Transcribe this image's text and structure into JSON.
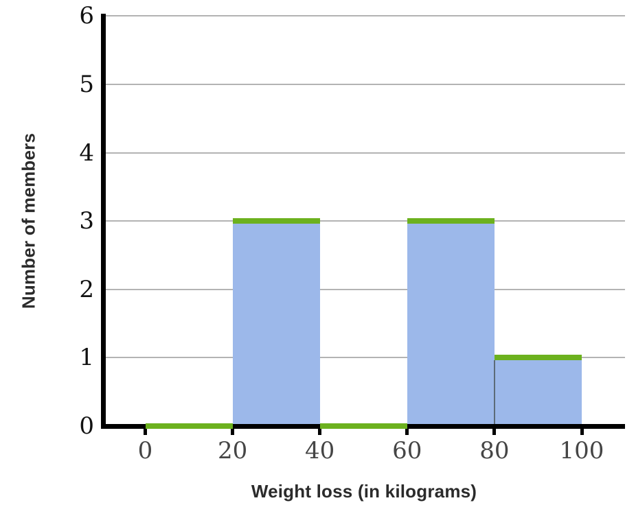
{
  "chart_data": {
    "type": "bar",
    "subtype": "histogram",
    "title": "",
    "xlabel": "Weight loss (in kilograms)",
    "ylabel": "Number of members",
    "bins": [
      {
        "start": 0,
        "end": 20,
        "count": 0
      },
      {
        "start": 20,
        "end": 40,
        "count": 3
      },
      {
        "start": 40,
        "end": 60,
        "count": 0
      },
      {
        "start": 60,
        "end": 80,
        "count": 3
      },
      {
        "start": 80,
        "end": 100,
        "count": 1
      }
    ],
    "categories": [
      "0-20",
      "20-40",
      "40-60",
      "60-80",
      "80-100"
    ],
    "values": [
      0,
      3,
      0,
      3,
      1
    ],
    "x_ticks": [
      "0",
      "20",
      "40",
      "60",
      "80",
      "100"
    ],
    "y_ticks": [
      "0",
      "1",
      "2",
      "3",
      "4",
      "5",
      "6"
    ],
    "xlim": [
      0,
      100
    ],
    "ylim": [
      0,
      6
    ],
    "grid": "horizontal",
    "legend": "none",
    "colors": {
      "bar_fill": "#9cb8ea",
      "bar_top_stroke": "#6cb11e",
      "gridline": "#b3b3b3",
      "axis": "#000000",
      "x_tick_label": "#454545",
      "y_tick_label": "#111111",
      "bar_divider": "#5c6b78",
      "background": "#ffffff"
    }
  }
}
